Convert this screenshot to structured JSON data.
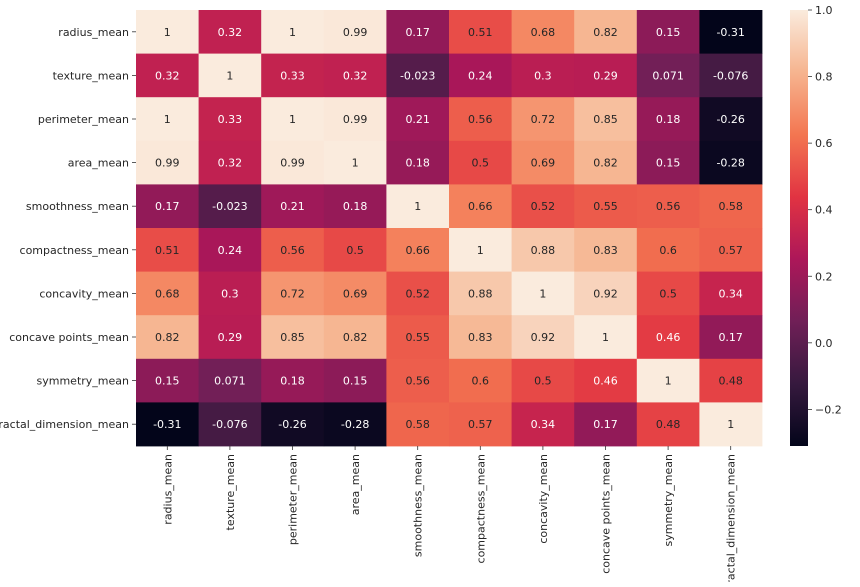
{
  "chart_data": {
    "type": "heatmap",
    "title": "",
    "xlabel": "",
    "ylabel": "",
    "labels": [
      "radius_mean",
      "texture_mean",
      "perimeter_mean",
      "area_mean",
      "smoothness_mean",
      "compactness_mean",
      "concavity_mean",
      "concave points_mean",
      "symmetry_mean",
      "fractal_dimension_mean"
    ],
    "values": [
      [
        1,
        0.32,
        1,
        0.99,
        0.17,
        0.51,
        0.68,
        0.82,
        0.15,
        -0.31
      ],
      [
        0.32,
        1,
        0.33,
        0.32,
        -0.023,
        0.24,
        0.3,
        0.29,
        0.071,
        -0.076
      ],
      [
        1,
        0.33,
        1,
        0.99,
        0.21,
        0.56,
        0.72,
        0.85,
        0.18,
        -0.26
      ],
      [
        0.99,
        0.32,
        0.99,
        1,
        0.18,
        0.5,
        0.69,
        0.82,
        0.15,
        -0.28
      ],
      [
        0.17,
        -0.023,
        0.21,
        0.18,
        1,
        0.66,
        0.52,
        0.55,
        0.56,
        0.58
      ],
      [
        0.51,
        0.24,
        0.56,
        0.5,
        0.66,
        1,
        0.88,
        0.83,
        0.6,
        0.57
      ],
      [
        0.68,
        0.3,
        0.72,
        0.69,
        0.52,
        0.88,
        1,
        0.92,
        0.5,
        0.34
      ],
      [
        0.82,
        0.29,
        0.85,
        0.82,
        0.55,
        0.83,
        0.92,
        1,
        0.46,
        0.17
      ],
      [
        0.15,
        0.071,
        0.18,
        0.15,
        0.56,
        0.6,
        0.5,
        0.46,
        1,
        0.48
      ],
      [
        -0.31,
        -0.076,
        -0.26,
        -0.28,
        0.58,
        0.57,
        0.34,
        0.17,
        0.48,
        1
      ]
    ],
    "colorbar": {
      "range": [
        -0.31,
        1.0
      ],
      "ticks": [
        "−0.2",
        "0.0",
        "0.2",
        "0.4",
        "0.6",
        "0.8",
        "1.0"
      ],
      "tick_values": [
        -0.2,
        0.0,
        0.2,
        0.4,
        0.6,
        0.8,
        1.0
      ],
      "colormap": "rocket"
    },
    "colormap_stops": [
      "#03051a",
      "#36193e",
      "#701f57",
      "#ad1759",
      "#e13342",
      "#f37651",
      "#f6b48f",
      "#faebdd"
    ]
  }
}
